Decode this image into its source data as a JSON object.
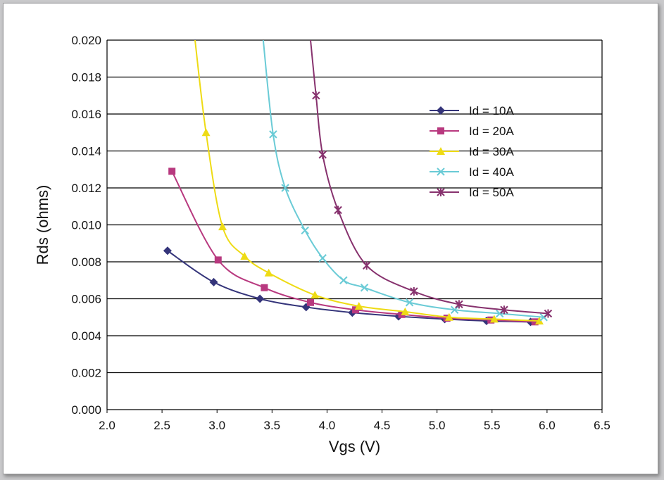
{
  "chart_data": {
    "type": "line",
    "title": "",
    "xlabel": "Vgs (V)",
    "ylabel": "Rds (ohms)",
    "xlim": [
      2.0,
      6.5
    ],
    "ylim": [
      0.0,
      0.02
    ],
    "xticks": [
      "2.0",
      "2.5",
      "3.0",
      "3.5",
      "4.0",
      "4.5",
      "5.0",
      "5.5",
      "6.0",
      "6.5"
    ],
    "yticks": [
      "0.000",
      "0.002",
      "0.004",
      "0.006",
      "0.008",
      "0.010",
      "0.012",
      "0.014",
      "0.016",
      "0.018",
      "0.020"
    ],
    "grid": "horizontal",
    "legend": "upper-right",
    "series": [
      {
        "name": "Id = 10A",
        "color": "#34347a",
        "marker": "diamond",
        "x": [
          2.55,
          2.97,
          3.39,
          3.81,
          4.23,
          4.65,
          5.07,
          5.45,
          5.85
        ],
        "y": [
          0.0086,
          0.0069,
          0.006,
          0.00555,
          0.00525,
          0.00505,
          0.0049,
          0.0048,
          0.00475
        ]
      },
      {
        "name": "Id = 20A",
        "color": "#b8397f",
        "marker": "square",
        "x": [
          2.59,
          3.01,
          3.43,
          3.85,
          4.26,
          4.68,
          5.09,
          5.49,
          5.89
        ],
        "y": [
          0.0129,
          0.0081,
          0.0066,
          0.0058,
          0.0054,
          0.00515,
          0.00495,
          0.00485,
          0.00475
        ]
      },
      {
        "name": "Id = 30A",
        "color": "#eedb14",
        "marker": "triangle",
        "x": [
          2.8,
          2.9,
          3.05,
          3.25,
          3.47,
          3.89,
          4.29,
          4.71,
          5.11,
          5.52,
          5.93
        ],
        "y": [
          0.02,
          0.015,
          0.0099,
          0.0083,
          0.0074,
          0.0062,
          0.0056,
          0.0053,
          0.005,
          0.0049,
          0.0048
        ]
      },
      {
        "name": "Id = 40A",
        "color": "#6acbd6",
        "marker": "x",
        "x": [
          3.42,
          3.51,
          3.62,
          3.8,
          3.96,
          4.15,
          4.34,
          4.75,
          5.16,
          5.57,
          5.97
        ],
        "y": [
          0.02,
          0.0149,
          0.012,
          0.0097,
          0.0082,
          0.007,
          0.0066,
          0.0058,
          0.0054,
          0.0052,
          0.005
        ]
      },
      {
        "name": "Id = 50A",
        "color": "#87326e",
        "marker": "star",
        "x": [
          3.85,
          3.9,
          3.96,
          4.1,
          4.36,
          4.79,
          5.2,
          5.61,
          6.01
        ],
        "y": [
          0.02,
          0.017,
          0.0138,
          0.0108,
          0.0078,
          0.0064,
          0.0057,
          0.0054,
          0.0052
        ]
      }
    ]
  }
}
